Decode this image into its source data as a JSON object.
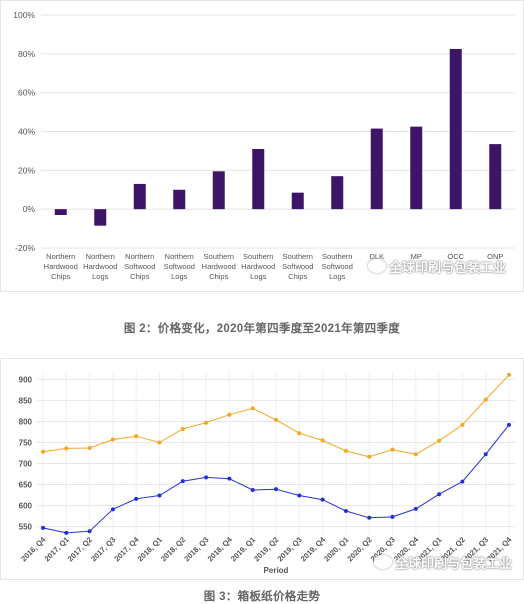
{
  "chart_data": [
    {
      "type": "bar",
      "categories": [
        "Northern Hardwood Chips",
        "Northern Hardwood Logs",
        "Northern Softwood Chips",
        "Northern Softwood Logs",
        "Southern Hardwood Chips",
        "Southern Hardwood Logs",
        "Southern Softwood Chips",
        "Southern Softwood Logs",
        "DLK",
        "MP",
        "OCC",
        "ONP"
      ],
      "category_lines": [
        [
          "Northern",
          "Hardwood",
          "Chips"
        ],
        [
          "Northern",
          "Hardwood",
          "Logs"
        ],
        [
          "Northern",
          "Softwood",
          "Chips"
        ],
        [
          "Northern",
          "Softwood",
          "Logs"
        ],
        [
          "Southern",
          "Hardwood",
          "Chips"
        ],
        [
          "Southern",
          "Hardwood",
          "Logs"
        ],
        [
          "Southern",
          "Softwood",
          "Chips"
        ],
        [
          "Southern",
          "Softwood",
          "Logs"
        ],
        [
          "DLK"
        ],
        [
          "MP"
        ],
        [
          "OCC"
        ],
        [
          "ONP"
        ]
      ],
      "values": [
        -3,
        -8.5,
        13,
        10,
        19.5,
        31,
        8.5,
        17,
        41.5,
        42.5,
        82.5,
        33.5
      ],
      "ylim": [
        -20,
        100
      ],
      "yticks": [
        -20,
        0,
        20,
        40,
        60,
        80,
        100
      ],
      "ytick_labels": [
        "-20%",
        "0%",
        "20%",
        "40%",
        "60%",
        "80%",
        "100%"
      ],
      "grid": true,
      "color": "#3d1566"
    },
    {
      "type": "line",
      "xlabel": "Period",
      "categories": [
        "2016, Q4",
        "2017, Q1",
        "2017, Q2",
        "2017, Q3",
        "2017, Q4",
        "2018, Q1",
        "2018, Q2",
        "2018, Q3",
        "2018, Q4",
        "2019, Q1",
        "2019, Q2",
        "2019, Q3",
        "2019, Q4",
        "2020, Q1",
        "2020, Q2",
        "2020, Q3",
        "2020, Q4",
        "2021, Q1",
        "2021, Q2",
        "2021, Q3",
        "2021, Q4"
      ],
      "ylim": [
        530,
        920
      ],
      "yticks": [
        550,
        600,
        650,
        700,
        750,
        800,
        850,
        900
      ],
      "grid": true,
      "series": [
        {
          "color": "#f5a623",
          "values": [
            728,
            736,
            737,
            757,
            765,
            750,
            782,
            797,
            816,
            831,
            804,
            772,
            755,
            730,
            716,
            733,
            722,
            754,
            792,
            852,
            911
          ]
        },
        {
          "color": "#2130d9",
          "values": [
            547,
            535,
            539,
            591,
            616,
            624,
            658,
            667,
            664,
            637,
            639,
            624,
            614,
            587,
            571,
            573,
            592,
            627,
            657,
            722,
            792
          ]
        }
      ]
    }
  ],
  "captions": {
    "chart1": "图 2：价格变化，2020年第四季度至2021年第四季度",
    "chart2": "图 3：箱板纸价格走势"
  },
  "watermark": "全球印刷与包装工业"
}
